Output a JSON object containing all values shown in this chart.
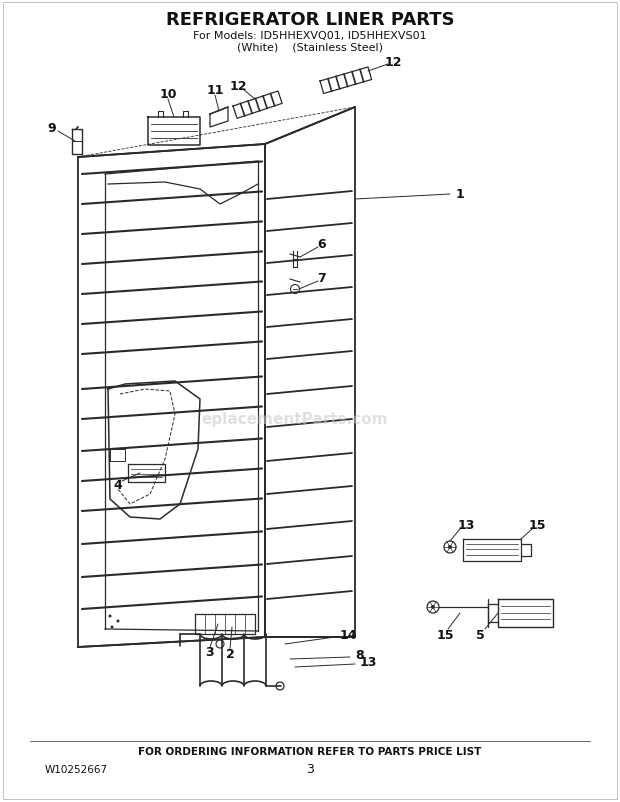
{
  "title": "REFRIGERATOR LINER PARTS",
  "subtitle_line1": "For Models: ID5HHEXVQ01, ID5HHEXVS01",
  "subtitle_line2": "(White)    (Stainless Steel)",
  "footer_text": "FOR ORDERING INFORMATION REFER TO PARTS PRICE LIST",
  "model_number": "W10252667",
  "page_number": "3",
  "background_color": "#ffffff",
  "line_color": "#2a2a2a",
  "text_color": "#111111",
  "watermark_text": "eplacementParts.com",
  "watermark_color": "#c8c8c8"
}
